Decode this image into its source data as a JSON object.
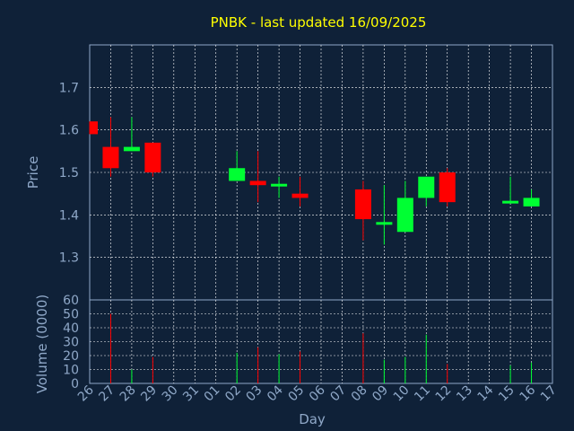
{
  "colors": {
    "background": "#0f2138",
    "title": "#ffff00",
    "axis_text": "#8fa8c8",
    "grid": "#ffffff",
    "up": "#00ff33",
    "down": "#ff0000"
  },
  "chart_data": [
    {
      "type": "candlestick",
      "title": "PNBK - last updated 16/09/2025",
      "ylabel": "Price",
      "xlabel": "Day",
      "ylim": [
        1.2,
        1.8
      ],
      "yticks": [
        "1.3",
        "1.4",
        "1.5",
        "1.6",
        "1.7"
      ],
      "grid": true,
      "categories": [
        "26",
        "27",
        "28",
        "29",
        "30",
        "31",
        "01",
        "02",
        "03",
        "04",
        "05",
        "06",
        "07",
        "08",
        "09",
        "10",
        "11",
        "12",
        "13",
        "14",
        "15",
        "16",
        "17"
      ],
      "candles": [
        {
          "x": "26",
          "open": 1.62,
          "high": 1.62,
          "low": 1.59,
          "close": 1.59
        },
        {
          "x": "27",
          "open": 1.56,
          "high": 1.63,
          "low": 1.49,
          "close": 1.51
        },
        {
          "x": "28",
          "open": 1.55,
          "high": 1.63,
          "low": 1.55,
          "close": 1.56
        },
        {
          "x": "29",
          "open": 1.57,
          "high": 1.57,
          "low": 1.49,
          "close": 1.5
        },
        {
          "x": "02",
          "open": 1.48,
          "high": 1.55,
          "low": 1.48,
          "close": 1.51
        },
        {
          "x": "03",
          "open": 1.48,
          "high": 1.55,
          "low": 1.43,
          "close": 1.47
        },
        {
          "x": "04",
          "open": 1.47,
          "high": 1.49,
          "low": 1.44,
          "close": 1.47
        },
        {
          "x": "05",
          "open": 1.45,
          "high": 1.49,
          "low": 1.42,
          "close": 1.44
        },
        {
          "x": "08",
          "open": 1.46,
          "high": 1.48,
          "low": 1.34,
          "close": 1.39
        },
        {
          "x": "09",
          "open": 1.38,
          "high": 1.47,
          "low": 1.33,
          "close": 1.38
        },
        {
          "x": "10",
          "open": 1.36,
          "high": 1.48,
          "low": 1.36,
          "close": 1.44
        },
        {
          "x": "11",
          "open": 1.44,
          "high": 1.49,
          "low": 1.42,
          "close": 1.49
        },
        {
          "x": "12",
          "open": 1.5,
          "high": 1.51,
          "low": 1.42,
          "close": 1.43
        },
        {
          "x": "15",
          "open": 1.43,
          "high": 1.49,
          "low": 1.43,
          "close": 1.43
        },
        {
          "x": "16",
          "open": 1.42,
          "high": 1.46,
          "low": 1.42,
          "close": 1.44
        }
      ]
    },
    {
      "type": "bar",
      "ylabel": "Volume (0000)",
      "xlabel": "Day",
      "ylim": [
        0,
        60
      ],
      "yticks": [
        "0",
        "10",
        "20",
        "30",
        "40",
        "50",
        "60"
      ],
      "grid": true,
      "categories": [
        "26",
        "27",
        "28",
        "29",
        "30",
        "31",
        "01",
        "02",
        "03",
        "04",
        "05",
        "06",
        "07",
        "08",
        "09",
        "10",
        "11",
        "12",
        "13",
        "14",
        "15",
        "16",
        "17"
      ],
      "bars": [
        {
          "x": "27",
          "value": 50,
          "direction": "down"
        },
        {
          "x": "28",
          "value": 10,
          "direction": "up"
        },
        {
          "x": "29",
          "value": 19,
          "direction": "down"
        },
        {
          "x": "02",
          "value": 22,
          "direction": "up"
        },
        {
          "x": "03",
          "value": 26,
          "direction": "down"
        },
        {
          "x": "04",
          "value": 21,
          "direction": "up"
        },
        {
          "x": "05",
          "value": 23,
          "direction": "down"
        },
        {
          "x": "08",
          "value": 36,
          "direction": "down"
        },
        {
          "x": "09",
          "value": 17,
          "direction": "up"
        },
        {
          "x": "10",
          "value": 19,
          "direction": "up"
        },
        {
          "x": "11",
          "value": 35,
          "direction": "up"
        },
        {
          "x": "12",
          "value": 14,
          "direction": "down"
        },
        {
          "x": "15",
          "value": 13,
          "direction": "up"
        },
        {
          "x": "16",
          "value": 15,
          "direction": "up"
        }
      ]
    }
  ]
}
